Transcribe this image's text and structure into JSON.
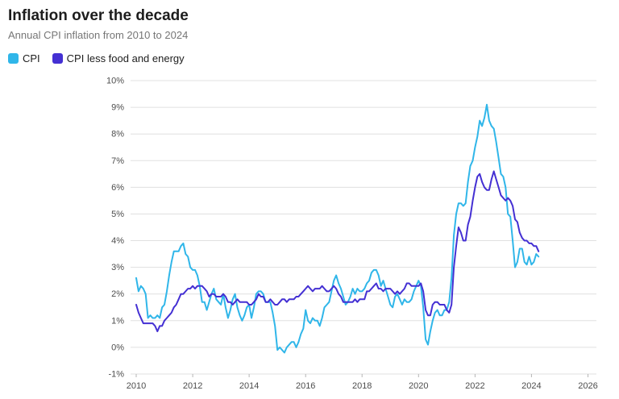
{
  "header": {
    "title": "Inflation over the decade",
    "subtitle": "Annual CPI inflation from 2010 to 2024"
  },
  "chart_data": {
    "type": "line",
    "title": "Inflation over the decade",
    "subtitle": "Annual CPI inflation from 2010 to 2024",
    "x_start": 2010.0,
    "points_per_year": 12,
    "xlim": [
      2009.8,
      2026.3
    ],
    "ylim": [
      -1,
      10
    ],
    "x_ticks": [
      2010,
      2012,
      2014,
      2016,
      2018,
      2020,
      2022,
      2024,
      2026
    ],
    "y_ticks": [
      "10%",
      "9%",
      "8%",
      "7%",
      "6%",
      "5%",
      "4%",
      "3%",
      "2%",
      "1%",
      "0%",
      "-1%"
    ],
    "grid": true,
    "legend_position": "top-left",
    "gridline_color": "#e0e0e0",
    "tick_label_color": "#4d4d4d",
    "series": [
      {
        "name": "CPI",
        "color": "#30b6e9",
        "values": [
          2.6,
          2.1,
          2.3,
          2.2,
          2.0,
          1.1,
          1.2,
          1.1,
          1.1,
          1.2,
          1.1,
          1.5,
          1.6,
          2.1,
          2.7,
          3.2,
          3.6,
          3.6,
          3.6,
          3.8,
          3.9,
          3.5,
          3.4,
          3.0,
          2.9,
          2.9,
          2.7,
          2.3,
          1.7,
          1.7,
          1.4,
          1.7,
          2.0,
          2.2,
          1.8,
          1.7,
          1.6,
          2.0,
          1.5,
          1.1,
          1.4,
          1.8,
          2.0,
          1.5,
          1.2,
          1.0,
          1.2,
          1.5,
          1.6,
          1.1,
          1.5,
          2.0,
          2.1,
          2.1,
          2.0,
          1.7,
          1.7,
          1.7,
          1.3,
          0.8,
          -0.1,
          0.0,
          -0.1,
          -0.2,
          0.0,
          0.1,
          0.2,
          0.2,
          0.0,
          0.2,
          0.5,
          0.7,
          1.4,
          1.0,
          0.9,
          1.1,
          1.0,
          1.0,
          0.8,
          1.1,
          1.5,
          1.6,
          1.7,
          2.1,
          2.5,
          2.7,
          2.4,
          2.2,
          1.9,
          1.6,
          1.7,
          1.9,
          2.2,
          2.0,
          2.2,
          2.1,
          2.1,
          2.2,
          2.4,
          2.5,
          2.8,
          2.9,
          2.9,
          2.7,
          2.3,
          2.5,
          2.2,
          1.9,
          1.6,
          1.5,
          1.9,
          2.0,
          1.8,
          1.6,
          1.8,
          1.7,
          1.7,
          1.8,
          2.1,
          2.3,
          2.5,
          2.3,
          1.5,
          0.3,
          0.1,
          0.6,
          1.0,
          1.3,
          1.4,
          1.2,
          1.2,
          1.4,
          1.4,
          1.7,
          2.6,
          4.2,
          5.0,
          5.4,
          5.4,
          5.3,
          5.4,
          6.2,
          6.8,
          7.0,
          7.5,
          7.9,
          8.5,
          8.3,
          8.6,
          9.1,
          8.5,
          8.3,
          8.2,
          7.7,
          7.1,
          6.5,
          6.4,
          6.0,
          5.0,
          4.9,
          4.0,
          3.0,
          3.2,
          3.7,
          3.7,
          3.2,
          3.1,
          3.4,
          3.1,
          3.2,
          3.5,
          3.4
        ]
      },
      {
        "name": "CPI less food and energy",
        "color": "#4430d3",
        "values": [
          1.6,
          1.3,
          1.1,
          0.9,
          0.9,
          0.9,
          0.9,
          0.9,
          0.8,
          0.6,
          0.8,
          0.8,
          1.0,
          1.1,
          1.2,
          1.3,
          1.5,
          1.6,
          1.8,
          2.0,
          2.0,
          2.1,
          2.2,
          2.2,
          2.3,
          2.2,
          2.3,
          2.3,
          2.3,
          2.2,
          2.1,
          1.9,
          2.0,
          2.0,
          1.9,
          1.9,
          1.9,
          2.0,
          1.9,
          1.7,
          1.7,
          1.6,
          1.7,
          1.8,
          1.7,
          1.7,
          1.7,
          1.7,
          1.6,
          1.6,
          1.7,
          1.8,
          2.0,
          1.9,
          1.9,
          1.7,
          1.7,
          1.8,
          1.7,
          1.6,
          1.6,
          1.7,
          1.8,
          1.8,
          1.7,
          1.8,
          1.8,
          1.8,
          1.9,
          1.9,
          2.0,
          2.1,
          2.2,
          2.3,
          2.2,
          2.1,
          2.2,
          2.2,
          2.2,
          2.3,
          2.2,
          2.1,
          2.1,
          2.2,
          2.3,
          2.2,
          2.0,
          1.9,
          1.7,
          1.7,
          1.7,
          1.7,
          1.7,
          1.8,
          1.7,
          1.8,
          1.8,
          1.8,
          2.1,
          2.1,
          2.2,
          2.3,
          2.4,
          2.2,
          2.2,
          2.1,
          2.2,
          2.2,
          2.2,
          2.1,
          2.0,
          2.1,
          2.0,
          2.1,
          2.2,
          2.4,
          2.4,
          2.3,
          2.3,
          2.3,
          2.3,
          2.4,
          2.1,
          1.4,
          1.2,
          1.2,
          1.6,
          1.7,
          1.7,
          1.6,
          1.6,
          1.6,
          1.4,
          1.3,
          1.6,
          3.0,
          3.8,
          4.5,
          4.3,
          4.0,
          4.0,
          4.6,
          4.9,
          5.5,
          6.0,
          6.4,
          6.5,
          6.2,
          6.0,
          5.9,
          5.9,
          6.3,
          6.6,
          6.3,
          6.0,
          5.7,
          5.6,
          5.5,
          5.6,
          5.5,
          5.3,
          4.8,
          4.7,
          4.3,
          4.1,
          4.0,
          4.0,
          3.9,
          3.9,
          3.8,
          3.8,
          3.6
        ]
      }
    ]
  }
}
